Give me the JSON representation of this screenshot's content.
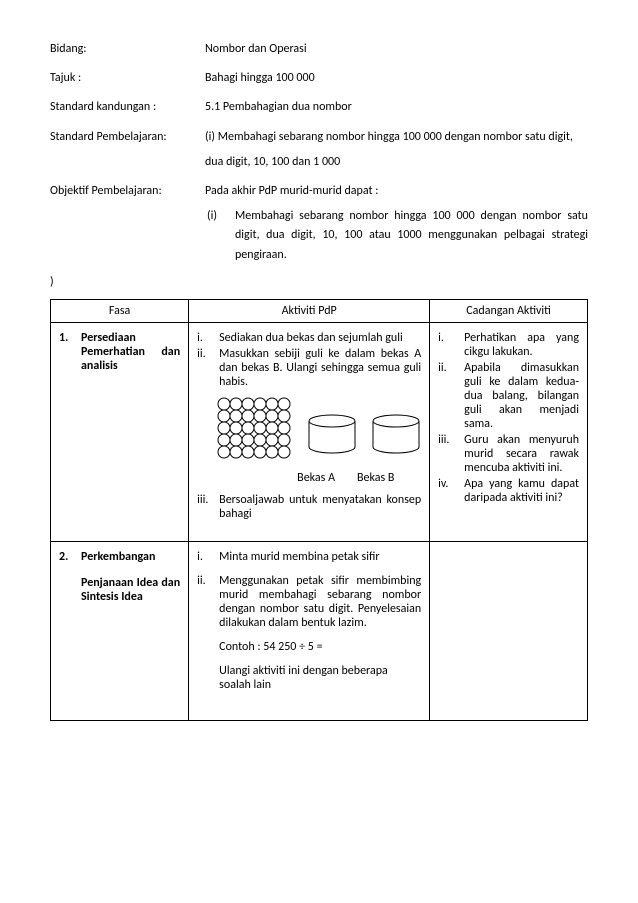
{
  "header": {
    "bidang_label": "Bidang:",
    "bidang_value": "Nombor dan Operasi",
    "tajuk_label": "Tajuk :",
    "tajuk_value": "Bahagi hingga 100 000",
    "sk_label": "Standard kandungan :",
    "sk_value": "5.1 Pembahagian dua nombor",
    "sp_label": "Standard Pembelajaran:",
    "sp_value": "(i) Membahagi sebarang nombor hingga 100 000 dengan nombor satu digit,",
    "sp_value2": "dua digit, 10, 100 dan 1 000",
    "op_label": "Objektif Pembelajaran:",
    "op_value": "Pada akhir PdP murid-murid dapat :",
    "op_i_num": "(i)",
    "op_i_txt": "Membahagi sebarang nombor hingga 100 000 dengan nombor satu digit, dua digit, 10, 100 atau 1000 menggunakan pelbagai strategi pengiraan.",
    "stray": ")"
  },
  "table": {
    "h1": "Fasa",
    "h2": "Aktiviti PdP",
    "h3": "Cadangan Aktiviti",
    "r1": {
      "fasa_num": "1.",
      "fasa_txt": "Persediaan Pemerhatian dan analisis",
      "akt": {
        "i_n": "i.",
        "i_t": "Sediakan dua bekas dan sejumlah guli",
        "ii_n": "ii.",
        "ii_t": "Masukkan sebiji guli ke dalam bekas A dan bekas B. Ulangi sehingga semua guli habis.",
        "bekasA": "Bekas A",
        "bekasB": "Bekas B",
        "iii_n": "iii.",
        "iii_t": "Bersoaljawab untuk menyatakan konsep bahagi"
      },
      "cad": {
        "i_n": "i.",
        "i_t": "Perhatikan apa yang cikgu lakukan.",
        "ii_n": "ii.",
        "ii_t": "Apabila dimasukkan guli ke dalam kedua-dua balang, bilangan guli akan menjadi sama.",
        "iii_n": "iii.",
        "iii_t": "Guru akan menyuruh murid secara rawak mencuba aktiviti ini.",
        "iv_n": "iv.",
        "iv_t": "Apa yang kamu dapat daripada aktiviti ini?"
      }
    },
    "r2": {
      "fasa_num": "2.",
      "fasa_txt": "Perkembangan",
      "fasa_sub": "Penjanaan Idea dan Sintesis Idea",
      "akt": {
        "i_n": "i.",
        "i_t": "Minta murid membina petak sifir",
        "ii_n": "ii.",
        "ii_t": "Menggunakan petak sifir membimbing murid membahagi sebarang nombor dengan nombor satu digit. Penyelesaian dilakukan dalam bentuk lazim.",
        "contoh": "Contoh :  54 250 ÷ 5 =",
        "ulang": "Ulangi aktiviti ini dengan beberapa soalah lain"
      }
    }
  },
  "svg": {
    "grid_rows": 5,
    "grid_cols": 6,
    "circle_r": 6,
    "circle_gap": 12,
    "cyl_w": 46,
    "cyl_h": 38,
    "cyl_ellipse_ry": 6
  }
}
